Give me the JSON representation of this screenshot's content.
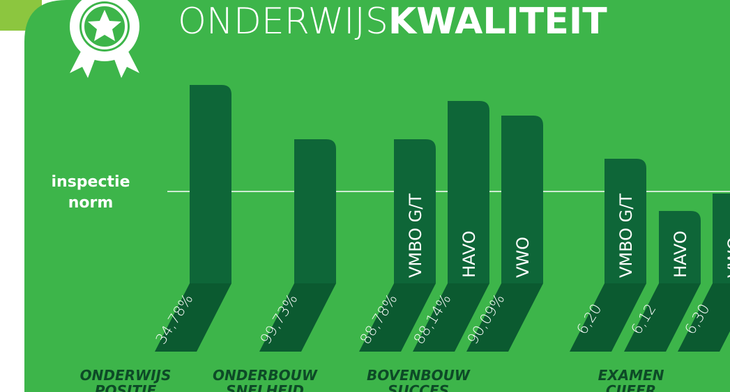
{
  "title": {
    "light": "ONDERWIJS",
    "bold": "KWALITEIT"
  },
  "norm_label": [
    "inspectie",
    "norm"
  ],
  "groups": [
    {
      "label": [
        "ONDERWIJS",
        "POSITIE"
      ],
      "bars": [
        {
          "value": "34,78%"
        }
      ]
    },
    {
      "label": [
        "ONDERBOUW",
        "SNELHEID"
      ],
      "bars": [
        {
          "value": "99,73%"
        }
      ]
    },
    {
      "label": [
        "BOVENBOUW",
        "SUCCES"
      ],
      "bars": [
        {
          "name": "VMBO G/T",
          "value": "88,78%"
        },
        {
          "name": "HAVO",
          "value": "88,14%"
        },
        {
          "name": "VWO",
          "value": "90,09%"
        }
      ]
    },
    {
      "label": [
        "EXAMEN",
        "CIJFER"
      ],
      "bars": [
        {
          "name": "VMBO G/T",
          "value": "6,20"
        },
        {
          "name": "HAVO",
          "value": "6,12"
        },
        {
          "name": "VWO",
          "value": "6,30"
        }
      ]
    }
  ]
}
